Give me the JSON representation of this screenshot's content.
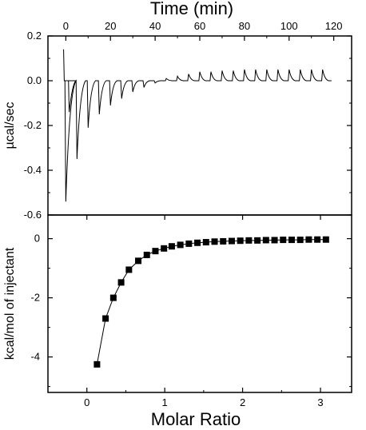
{
  "chart_data": [
    {
      "type": "line",
      "panel": "top",
      "xlabel": "Time (min)",
      "ylabel": "µcal/sec",
      "xlim": [
        -8,
        128
      ],
      "ylim": [
        -0.6,
        0.2
      ],
      "x_ticks": [
        0,
        20,
        40,
        60,
        80,
        100,
        120
      ],
      "x_tick_labels": [
        "0",
        "20",
        "40",
        "60",
        "80",
        "100",
        "120"
      ],
      "y_ticks": [
        -0.6,
        -0.4,
        -0.2,
        0.0,
        0.2
      ],
      "y_tick_labels": [
        "-0.6",
        "-0.4",
        "-0.2",
        "0.0",
        "0.2"
      ],
      "x_axis_position": "top",
      "baseline": 0.0,
      "series": [
        {
          "injection_times": [
            0,
            5,
            10,
            15,
            20,
            25,
            30,
            35,
            40,
            45,
            50,
            55,
            60,
            65,
            70,
            75,
            80,
            85,
            90,
            95,
            100,
            105,
            110,
            115
          ],
          "peak_heights": [
            -0.54,
            -0.35,
            -0.21,
            -0.15,
            -0.11,
            -0.08,
            -0.05,
            -0.03,
            -0.01,
            0.01,
            0.02,
            0.03,
            0.04,
            0.04,
            0.045,
            0.045,
            0.05,
            0.05,
            0.05,
            0.05,
            0.05,
            0.05,
            0.05,
            0.05
          ],
          "first_small_peak": {
            "time": 1.5,
            "value": -0.14
          },
          "initial_spike": {
            "time": -1,
            "value": 0.14
          }
        }
      ]
    },
    {
      "type": "scatter",
      "panel": "bottom",
      "xlabel": "Molar Ratio",
      "ylabel": "kcal/mol of injectant",
      "xlim": [
        -0.5,
        3.4
      ],
      "ylim": [
        -5.2,
        0.8
      ],
      "x_ticks": [
        0,
        1,
        2,
        3
      ],
      "x_tick_labels": [
        "0",
        "1",
        "2",
        "3"
      ],
      "y_ticks": [
        -4,
        -2,
        0
      ],
      "y_tick_labels": [
        "-4",
        "-2",
        "0"
      ],
      "marker": "square",
      "series": [
        {
          "x": [
            0.13,
            0.24,
            0.34,
            0.44,
            0.54,
            0.66,
            0.77,
            0.88,
            0.99,
            1.09,
            1.2,
            1.31,
            1.42,
            1.53,
            1.64,
            1.75,
            1.86,
            1.97,
            2.08,
            2.19,
            2.3,
            2.41,
            2.52,
            2.63,
            2.74,
            2.85,
            2.96,
            3.07
          ],
          "y": [
            -4.25,
            -2.7,
            -2.0,
            -1.48,
            -1.05,
            -0.75,
            -0.55,
            -0.42,
            -0.33,
            -0.26,
            -0.21,
            -0.17,
            -0.14,
            -0.12,
            -0.1,
            -0.09,
            -0.08,
            -0.07,
            -0.06,
            -0.06,
            -0.05,
            -0.05,
            -0.04,
            -0.04,
            -0.04,
            -0.03,
            -0.03,
            -0.03
          ]
        }
      ],
      "fit_line": true
    }
  ]
}
